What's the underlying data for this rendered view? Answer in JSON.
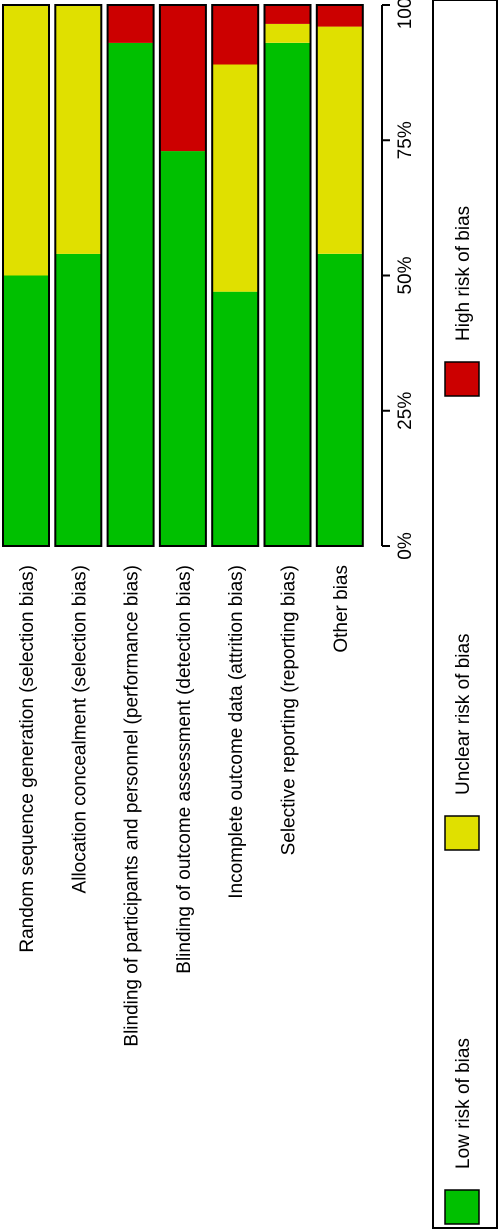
{
  "chart_data": {
    "type": "bar",
    "orientation": "stacked-100",
    "categories": [
      "Random sequence generation (selection bias)",
      "Allocation concealment (selection bias)",
      "Blinding of participants and personnel (performance bias)",
      "Blinding of outcome assessment (detection bias)",
      "Incomplete outcome data (attrition bias)",
      "Selective reporting (reporting bias)",
      "Other bias"
    ],
    "series": [
      {
        "name": "Low risk of bias",
        "color": "#00c000",
        "values": [
          50,
          54,
          93,
          73,
          47,
          93,
          54
        ]
      },
      {
        "name": "Unclear risk of bias",
        "color": "#e0e000",
        "values": [
          50,
          46,
          0,
          0,
          42,
          3.5,
          42
        ]
      },
      {
        "name": "High risk of bias",
        "color": "#cc0000",
        "values": [
          0,
          0,
          7,
          27,
          11,
          3.5,
          4
        ]
      }
    ],
    "axis": {
      "ticks": [
        "0%",
        "25%",
        "50%",
        "75%",
        "100%"
      ],
      "tick_values": [
        0,
        25,
        50,
        75,
        100
      ],
      "range": [
        0,
        100
      ]
    },
    "legend": {
      "placement": "bottom"
    }
  }
}
